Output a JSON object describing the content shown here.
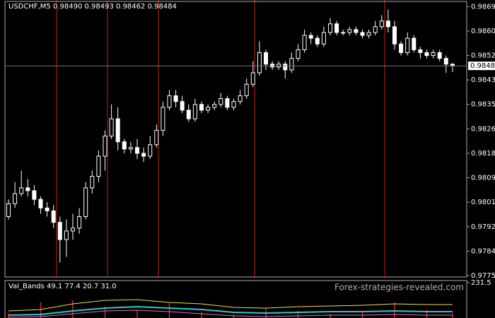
{
  "chart_data": {
    "type": "candlestick",
    "title": "USDCHF,M5 0.98490 0.98493 0.98462 0.98484",
    "watermark": "Forex-strategies-revealed.com",
    "up_color": "#000000",
    "down_color": "#ffffff",
    "wick_color": "#ffffff",
    "session_line_color": "#c81e1e",
    "grid": false,
    "ylim": [
      0.9775,
      0.98708
    ],
    "yticks": [
      {
        "value": 0.9869,
        "label": "0.98690"
      },
      0.98605,
      {
        "value": 0.9852,
        "label": "0.98520"
      },
      0.98435,
      {
        "value": 0.9835,
        "label": "0.98350"
      },
      0.98265,
      {
        "value": 0.9818,
        "label": "0.98180"
      },
      0.98095,
      {
        "value": 0.9801,
        "label": "0.98010"
      },
      0.97925,
      {
        "value": 0.9784,
        "label": "0.97840"
      },
      0.97755
    ],
    "open": [
      0.9796,
      0.98005,
      0.9804,
      0.9806,
      0.9805,
      0.9802,
      0.9799,
      0.9798,
      0.9794,
      0.9788,
      0.9791,
      0.9792,
      0.9796,
      0.9806,
      0.981,
      0.9817,
      0.9824,
      0.983,
      0.9822,
      0.98195,
      0.982,
      0.9818,
      0.9817,
      0.9821,
      0.9826,
      0.9834,
      0.9838,
      0.9836,
      0.9833,
      0.983,
      0.9835,
      0.9833,
      0.9834,
      0.9835,
      0.9837,
      0.9834,
      0.9836,
      0.9838,
      0.9842,
      0.9846,
      0.9853,
      0.9849,
      0.9848,
      0.9849,
      0.9847,
      0.9851,
      0.9854,
      0.9859,
      0.9858,
      0.9856,
      0.986,
      0.9863,
      0.986,
      0.986,
      0.9861,
      0.986,
      0.9859,
      0.986,
      0.9862,
      0.9864,
      0.9862,
      0.9856,
      0.9853,
      0.9858,
      0.9854,
      0.9853,
      0.9852,
      0.9853,
      0.9851,
      0.9849
    ],
    "high": [
      0.9802,
      0.9808,
      0.9812,
      0.9809,
      0.9807,
      0.9803,
      0.9801,
      0.98,
      0.9796,
      0.9795,
      0.9797,
      0.9799,
      0.9808,
      0.9812,
      0.9819,
      0.9826,
      0.9835,
      0.9834,
      0.9823,
      0.9822,
      0.9823,
      0.982,
      0.9824,
      0.9828,
      0.9836,
      0.984,
      0.984,
      0.9838,
      0.9835,
      0.9837,
      0.9836,
      0.9835,
      0.9836,
      0.9839,
      0.9838,
      0.9837,
      0.984,
      0.9844,
      0.985,
      0.9857,
      0.9854,
      0.985,
      0.985,
      0.985,
      0.9853,
      0.9856,
      0.9861,
      0.986,
      0.9859,
      0.9862,
      0.9865,
      0.9864,
      0.9861,
      0.9862,
      0.9862,
      0.9861,
      0.9861,
      0.9864,
      0.9866,
      0.9868,
      0.9864,
      0.9857,
      0.986,
      0.9859,
      0.9855,
      0.9854,
      0.9854,
      0.9854,
      0.9852,
      0.98493
    ],
    "low": [
      0.9795,
      0.9799,
      0.9803,
      0.9803,
      0.98,
      0.9797,
      0.9796,
      0.9792,
      0.978,
      0.9782,
      0.9788,
      0.979,
      0.9795,
      0.9804,
      0.9808,
      0.9812,
      0.9823,
      0.9819,
      0.9818,
      0.9818,
      0.9816,
      0.9815,
      0.9816,
      0.982,
      0.9824,
      0.9833,
      0.9834,
      0.9832,
      0.9829,
      0.9829,
      0.9832,
      0.9832,
      0.9833,
      0.9834,
      0.9833,
      0.9833,
      0.9835,
      0.9837,
      0.9841,
      0.9845,
      0.9847,
      0.9847,
      0.9847,
      0.9844,
      0.9846,
      0.985,
      0.9853,
      0.9856,
      0.9855,
      0.9855,
      0.9859,
      0.9859,
      0.9859,
      0.9859,
      0.9859,
      0.9858,
      0.9858,
      0.9859,
      0.9861,
      0.986,
      0.9854,
      0.9852,
      0.9852,
      0.9853,
      0.9851,
      0.9851,
      0.9851,
      0.985,
      0.9846,
      0.98462
    ],
    "close": [
      0.98005,
      0.9804,
      0.9806,
      0.9805,
      0.9802,
      0.9799,
      0.9798,
      0.9794,
      0.9788,
      0.9791,
      0.9792,
      0.9796,
      0.9806,
      0.981,
      0.9817,
      0.9824,
      0.983,
      0.9822,
      0.98195,
      0.982,
      0.9818,
      0.9817,
      0.9821,
      0.9826,
      0.9834,
      0.9838,
      0.9836,
      0.9833,
      0.983,
      0.9835,
      0.9833,
      0.9834,
      0.9835,
      0.9837,
      0.9834,
      0.9836,
      0.9838,
      0.9842,
      0.9846,
      0.9853,
      0.9849,
      0.9848,
      0.9849,
      0.9847,
      0.9851,
      0.9854,
      0.9859,
      0.9858,
      0.9856,
      0.986,
      0.9863,
      0.986,
      0.986,
      0.9861,
      0.986,
      0.9859,
      0.986,
      0.9862,
      0.9864,
      0.9862,
      0.9856,
      0.9853,
      0.9858,
      0.9854,
      0.9853,
      0.9852,
      0.9853,
      0.9851,
      0.9849,
      0.98484
    ],
    "indicator": {
      "label": "Val_Bands 49.1 77.4 20.7 31.0",
      "ylim": [
        0,
        231.5
      ],
      "yticks": [
        231.5
      ],
      "x": [
        0,
        5,
        10,
        15,
        20,
        25,
        30,
        35,
        40,
        45,
        50,
        55,
        60,
        65,
        69
      ],
      "series": [
        {
          "color": "#f0e040",
          "values": [
            99.2,
            105.8,
            132.3,
            148.8,
            152.1,
            138.9,
            132.3,
            115.7,
            112.4,
            119.1,
            122.4,
            125.7,
            132.3,
            129.0,
            129.0
          ]
        },
        {
          "color": "#30c8c8",
          "values": [
            79.4,
            82.7,
            99.2,
            112.4,
            119.1,
            112.4,
            105.8,
            92.6,
            89.3,
            92.6,
            95.9,
            95.9,
            99.2,
            95.9,
            95.9
          ]
        },
        {
          "color": "#e070c0",
          "values": [
            69.4,
            72.8,
            86.0,
            99.2,
            102.5,
            95.9,
            86.0,
            76.1,
            72.8,
            76.1,
            79.4,
            79.4,
            82.7,
            79.4,
            79.4
          ]
        }
      ],
      "bar_color": "#d02828",
      "bars": [
        90,
        140,
        150,
        120,
        100,
        135,
        95,
        85,
        110,
        100,
        85,
        95,
        140,
        105,
        90
      ]
    }
  }
}
